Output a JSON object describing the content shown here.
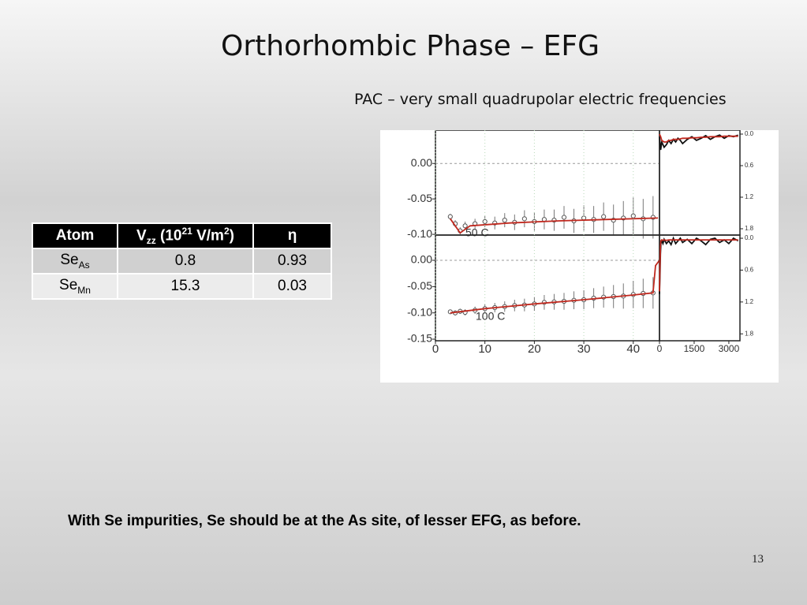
{
  "title": "Orthorhombic Phase – EFG",
  "subtitle": "PAC – very small quadrupolar electric frequencies",
  "table": {
    "header": [
      "Atom",
      [
        "V",
        "zz",
        " (10",
        "21",
        " V/m",
        "2",
        ")"
      ],
      "η"
    ],
    "rows": [
      [
        [
          "Se",
          "As"
        ],
        0.8,
        0.93
      ],
      [
        [
          "Se",
          "Mn"
        ],
        15.3,
        0.03
      ]
    ]
  },
  "figure": {
    "panels": [
      {
        "type": "scatter",
        "xlim": [
          0,
          45.3
        ],
        "ylim": [
          -0.101,
          0.047
        ],
        "grid": true,
        "yticks": [
          {
            "value": 0,
            "label": "0.00"
          },
          -0.05,
          {
            "value": -0.1,
            "label": "-0.10"
          }
        ],
        "annotation": "50 C",
        "series": [
          {
            "kind": "points",
            "color": "#555555",
            "x": [
              3,
              4,
              5,
              6,
              8,
              10,
              12,
              14,
              16,
              18,
              20,
              22,
              24,
              26,
              28,
              30,
              32,
              34,
              36,
              38,
              40,
              42,
              44
            ],
            "values": [
              -0.075,
              -0.085,
              -0.095,
              -0.088,
              -0.085,
              -0.082,
              -0.084,
              -0.08,
              -0.083,
              -0.078,
              -0.082,
              -0.079,
              -0.08,
              -0.076,
              -0.081,
              -0.077,
              -0.079,
              -0.075,
              -0.08,
              -0.077,
              -0.074,
              -0.078,
              -0.076
            ],
            "errors": [
              0.004,
              0.005,
              0.005,
              0.006,
              0.007,
              0.008,
              0.009,
              0.01,
              0.011,
              0.012,
              0.013,
              0.014,
              0.015,
              0.016,
              0.017,
              0.018,
              0.019,
              0.02,
              0.022,
              0.024,
              0.026,
              0.028,
              0.03
            ]
          },
          {
            "kind": "line",
            "color": "#c0281e",
            "x": [
              3,
              5,
              7,
              15,
              25,
              35,
              45
            ],
            "values": [
              -0.078,
              -0.098,
              -0.088,
              -0.084,
              -0.081,
              -0.079,
              -0.077
            ]
          }
        ]
      },
      {
        "type": "scatter",
        "xlim": [
          0,
          45.3
        ],
        "ylim": [
          -0.153,
          0.048
        ],
        "grid": true,
        "xticks": [
          0,
          10,
          20,
          30,
          40
        ],
        "yticks": [
          {
            "value": 0,
            "label": "0.00"
          },
          -0.05,
          {
            "value": -0.1,
            "label": "-0.10"
          },
          -0.15
        ],
        "annotation": "100 C",
        "series": [
          {
            "kind": "points",
            "color": "#555555",
            "x": [
              3,
              4,
              5,
              6,
              8,
              10,
              12,
              14,
              16,
              18,
              20,
              22,
              24,
              26,
              28,
              30,
              32,
              34,
              36,
              38,
              40,
              42,
              44
            ],
            "values": [
              -0.098,
              -0.1,
              -0.097,
              -0.099,
              -0.095,
              -0.092,
              -0.09,
              -0.088,
              -0.086,
              -0.085,
              -0.083,
              -0.08,
              -0.079,
              -0.078,
              -0.076,
              -0.075,
              -0.072,
              -0.07,
              -0.069,
              -0.068,
              -0.065,
              -0.063,
              -0.062
            ],
            "errors": [
              0.004,
              0.005,
              0.005,
              0.006,
              0.007,
              0.008,
              0.009,
              0.01,
              0.011,
              0.012,
              0.013,
              0.014,
              0.015,
              0.016,
              0.017,
              0.018,
              0.019,
              0.02,
              0.022,
              0.024,
              0.026,
              0.028,
              0.03
            ]
          },
          {
            "kind": "line",
            "color": "#c0281e",
            "x": [
              3,
              10,
              20,
              30,
              40,
              44,
              44.5,
              45.3
            ],
            "values": [
              -0.1,
              -0.092,
              -0.083,
              -0.075,
              -0.066,
              -0.062,
              -0.01,
              0.0
            ]
          }
        ]
      },
      {
        "type": "line",
        "xlim": [
          0,
          3480
        ],
        "ylim": [
          1.92,
          -0.075
        ],
        "yticks": [
          {
            "value": 0,
            "label": "0.0"
          },
          0.6,
          1.2,
          1.8
        ],
        "series": [
          {
            "kind": "line",
            "color": "#111111",
            "x": [
              0,
              50,
              100,
              200,
              300,
              400,
              500,
              600,
              700,
              800,
              900,
              1000,
              1200,
              1400,
              1600,
              1800,
              2000,
              2200,
              2400,
              2600,
              2800,
              3000,
              3200,
              3400
            ],
            "values": [
              0.05,
              0.3,
              0.15,
              0.25,
              0.2,
              0.12,
              0.18,
              0.1,
              0.15,
              0.08,
              0.12,
              0.18,
              0.1,
              0.05,
              0.12,
              0.08,
              0.03,
              0.1,
              0.05,
              0.02,
              0.08,
              0.03,
              0.05,
              0.02
            ]
          },
          {
            "kind": "line",
            "color": "#c0281e",
            "x": [
              0,
              50,
              100,
              200,
              300,
              400,
              500,
              600,
              700,
              800,
              900,
              1000,
              1200,
              1400,
              1600,
              1800,
              2000,
              2200,
              2400,
              2600,
              2800,
              3000,
              3200,
              3400
            ],
            "values": [
              0.0,
              0.05,
              0.12,
              0.15,
              0.15,
              0.12,
              0.12,
              0.1,
              0.1,
              0.1,
              0.09,
              0.08,
              0.08,
              0.07,
              0.07,
              0.06,
              0.06,
              0.05,
              0.05,
              0.05,
              0.04,
              0.04,
              0.04,
              0.04
            ]
          }
        ]
      },
      {
        "type": "line",
        "xlim": [
          0,
          3480
        ],
        "ylim": [
          1.93,
          -0.06
        ],
        "xticks": [
          0,
          1500,
          3000
        ],
        "yticks": [
          {
            "value": 0,
            "label": "0.0"
          },
          0.6,
          1.2,
          1.8
        ],
        "series": [
          {
            "kind": "line",
            "color": "#111111",
            "x": [
              0,
              20,
              40,
              60,
              100,
              150,
              200,
              300,
              400,
              500,
              600,
              700,
              800,
              900,
              1000,
              1200,
              1400,
              1600,
              1800,
              2000,
              2200,
              2400,
              2600,
              2800,
              3000,
              3200,
              3400
            ],
            "values": [
              1.05,
              0.7,
              0.3,
              0.1,
              0.05,
              0.1,
              0.02,
              0.1,
              0.05,
              0.12,
              0.0,
              0.1,
              0.05,
              0.0,
              0.08,
              0.02,
              0.1,
              0.0,
              0.05,
              0.12,
              0.02,
              0.0,
              0.08,
              0.03,
              0.1,
              0.0,
              0.05
            ]
          },
          {
            "kind": "line",
            "color": "#c0281e",
            "x": [
              0,
              20,
              40,
              60,
              100,
              150,
              200,
              300,
              400,
              500,
              600,
              700,
              800,
              900,
              1000,
              1200,
              1400,
              1600,
              1800,
              2000,
              2200,
              2400,
              2600,
              2800,
              3000,
              3200,
              3400
            ],
            "values": [
              1.0,
              0.5,
              0.15,
              0.05,
              0.03,
              0.04,
              0.03,
              0.04,
              0.03,
              0.03,
              0.03,
              0.03,
              0.03,
              0.03,
              0.03,
              0.03,
              0.03,
              0.03,
              0.03,
              0.03,
              0.03,
              0.03,
              0.03,
              0.03,
              0.03,
              0.03,
              0.03
            ]
          }
        ]
      }
    ]
  },
  "footer": "With Se impurities, Se should be at the As site, of lesser EFG, as before.",
  "page_number": "13"
}
